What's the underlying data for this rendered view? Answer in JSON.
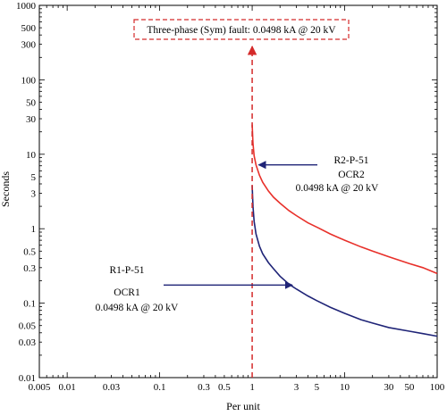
{
  "chart_data": {
    "type": "line",
    "xlabel": "Per unit",
    "ylabel": "Seconds",
    "xscale": "log",
    "yscale": "log",
    "xlim": [
      0.005,
      100
    ],
    "ylim": [
      0.01,
      1000
    ],
    "x_ticks": [
      0.005,
      0.01,
      0.03,
      0.1,
      0.3,
      0.5,
      1,
      3,
      5,
      10,
      30,
      50,
      100
    ],
    "x_tick_labels": [
      "0.005",
      "0.01",
      "0.03",
      "0.1",
      "0.3",
      "0.5",
      "1",
      "3",
      "5",
      "10",
      "30",
      "50",
      "100"
    ],
    "y_ticks": [
      0.01,
      0.03,
      0.05,
      0.1,
      0.3,
      0.5,
      1,
      3,
      5,
      10,
      30,
      50,
      100,
      300,
      500,
      1000
    ],
    "y_tick_labels": [
      "0.01",
      "0.03",
      "0.05",
      "0.1",
      "0.3",
      "0.5",
      "1",
      "3",
      "5",
      "10",
      "30",
      "50",
      "100",
      "300",
      "500",
      "1000"
    ],
    "grid": false,
    "series": [
      {
        "label": "OCR2",
        "color": "#e8302a",
        "x": [
          1.0,
          1.02,
          1.05,
          1.1,
          1.2,
          1.3,
          1.5,
          1.7,
          2,
          2.5,
          3,
          4,
          5,
          7,
          10,
          15,
          20,
          30,
          50,
          70,
          100
        ],
        "y": [
          25,
          14,
          9.5,
          7.2,
          5.2,
          4.2,
          3.2,
          2.65,
          2.2,
          1.75,
          1.5,
          1.2,
          1.05,
          0.85,
          0.7,
          0.57,
          0.5,
          0.42,
          0.34,
          0.3,
          0.25
        ]
      },
      {
        "label": "OCR1",
        "color": "#1f2477",
        "x": [
          1.0,
          1.02,
          1.05,
          1.1,
          1.2,
          1.3,
          1.5,
          1.7,
          2,
          2.5,
          3,
          4,
          5,
          7,
          10,
          15,
          20,
          30,
          50,
          70,
          100
        ],
        "y": [
          3.8,
          2.0,
          1.25,
          0.85,
          0.58,
          0.46,
          0.35,
          0.29,
          0.23,
          0.18,
          0.155,
          0.125,
          0.108,
          0.088,
          0.073,
          0.06,
          0.054,
          0.047,
          0.042,
          0.039,
          0.036
        ]
      }
    ],
    "fault_line": {
      "x": 1,
      "color": "#d42a2a",
      "label": "Three-phase (Sym) fault: 0.0498 kA @ 20 kV"
    },
    "annotations": [
      {
        "lines": [
          "R2-P-51",
          "OCR2",
          "0.0498 kA @ 20 kV"
        ],
        "arrow_color": "#1f2477",
        "arrow_tip": [
          1.1,
          7.2
        ]
      },
      {
        "lines": [
          "R1-P-51",
          "OCR1",
          "0.0498 kA @ 20 kV"
        ],
        "arrow_color": "#1f2477",
        "arrow_tip": [
          2.6,
          0.175
        ]
      }
    ]
  }
}
